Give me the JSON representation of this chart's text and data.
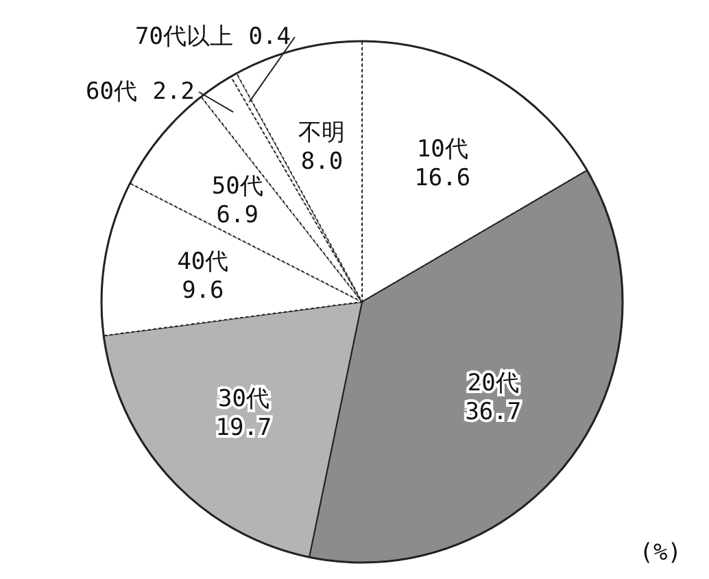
{
  "chart_data": {
    "type": "pie",
    "categories": [
      "10代",
      "20代",
      "30代",
      "40代",
      "50代",
      "60代",
      "70代以上",
      "不明"
    ],
    "values": [
      16.6,
      36.7,
      19.7,
      9.6,
      6.9,
      2.2,
      0.4,
      8.0
    ],
    "colors": [
      "#ffffff",
      "#8c8c8c",
      "#b4b4b4",
      "#ffffff",
      "#ffffff",
      "#ffffff",
      "#ffffff",
      "#ffffff"
    ],
    "value_labels": [
      "16.6",
      "36.7",
      "19.7",
      "9.6",
      "6.9",
      "2.2",
      "0.4",
      "8.0"
    ],
    "annotations": [
      "(%)"
    ]
  }
}
